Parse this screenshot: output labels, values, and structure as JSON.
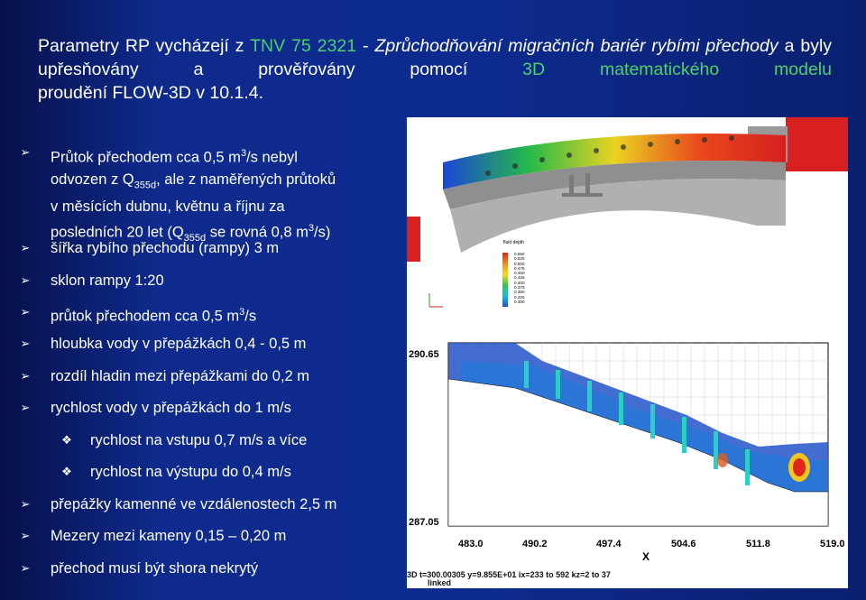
{
  "title": {
    "part1": "Parametry RP vycházejí z ",
    "norm": "TNV 75 2321",
    "part2": " - ",
    "norm_title": "Zprůchodňování migračních bariér rybími přechody",
    "part3": " a byly upřesňovány a prověřovány pomocí ",
    "model": "3D matematického modelu",
    "part4": "proudění FLOW-3D v 10.1.4."
  },
  "bullets": [
    {
      "line1": "Průtok přechodem cca 0,5 m",
      "sup1": "3",
      "line1b": "/s nebyl",
      "line2": "odvozen z Q",
      "sub2": "355d",
      "line2b": ", ale z naměřených průtoků",
      "line3": "v měsících dubnu, květnu a říjnu za",
      "line4": "posledních 20 let (Q",
      "sub4": "355d",
      "line4b": " se rovná 0,8 m",
      "sup4": "3",
      "line4c": "/s)"
    },
    {
      "text": "šířka rybího přechodu (rampy) 3 m"
    },
    {
      "text": "sklon  rampy 1:20"
    },
    {
      "text": "průtok přechodem cca 0,5 m",
      "sup": "3",
      "text_b": "/s"
    },
    {
      "text": "hloubka vody v přepážkách 0,4 - 0,5 m"
    },
    {
      "text": " rozdíl hladin mezi přepážkami do 0,2 m"
    },
    {
      "text": "rychlost vody v přepážkách do 1 m/s"
    },
    {
      "text": "rychlost na vstupu 0,7 m/s a více"
    },
    {
      "text": "rychlost na výstupu do 0,4 m/s"
    },
    {
      "text": "přepážky  kamenné ve vzdálenostech 2,5 m"
    },
    {
      "text": "Mezery mezi kameny 0,15 – 0,20 m"
    },
    {
      "text": "přechod musí být shora nekrytý"
    }
  ],
  "figure_top": {
    "legend_title": "fluid depth",
    "legend_values": [
      "0.550",
      "0.525",
      "0.500",
      "0.475",
      "0.450",
      "0.425",
      "0.400",
      "0.375",
      "0.350",
      "0.325",
      "0.300"
    ]
  },
  "figure_bottom": {
    "y_ticks": [
      "290.65",
      "287.05"
    ],
    "x_ticks": [
      "483.0",
      "490.2",
      "497.4",
      "504.6",
      "511.8",
      "519.0"
    ],
    "x_label": "X",
    "footer_line1": "3D  t=300.00305  y=9.855E+01  ix=233 to 592  kz=2 to 37",
    "footer_line2": "linked"
  },
  "colors": {
    "accent_green": "#4bd06a",
    "background": "#0d2b8f"
  }
}
